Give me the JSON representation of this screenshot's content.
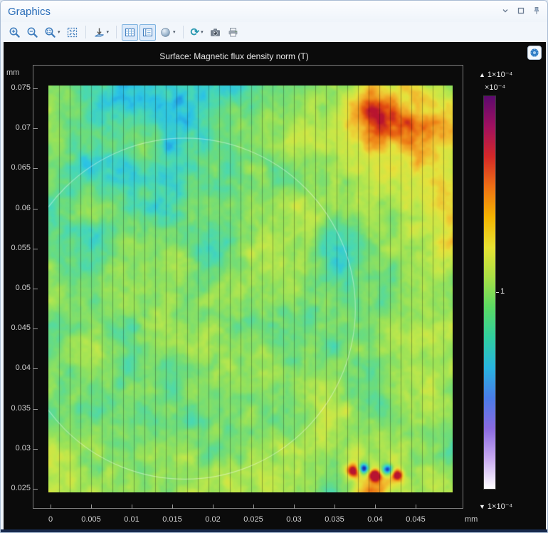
{
  "window": {
    "title": "Graphics"
  },
  "window_controls": [
    {
      "name": "collapse-button",
      "icon": "chevron-down-icon"
    },
    {
      "name": "float-button",
      "icon": "float-icon"
    },
    {
      "name": "pin-button",
      "icon": "pin-icon"
    }
  ],
  "toolbar": {
    "icons": [
      "zoom-in-icon",
      "zoom-out-icon",
      "zoom-box-icon",
      "zoom-extents-icon",
      "view-axis-icon",
      "show-grid-icon",
      "show-legends-icon",
      "scene-light-icon",
      "update-icon",
      "image-snapshot-icon",
      "print-icon"
    ]
  },
  "chart_data": {
    "type": "heatmap",
    "title": "Surface: Magnetic flux density norm (T)",
    "x_unit": "mm",
    "y_unit": "mm",
    "x_ticks": [
      "0",
      "0.005",
      "0.01",
      "0.015",
      "0.02",
      "0.025",
      "0.03",
      "0.035",
      "0.04",
      "0.045"
    ],
    "y_ticks": [
      "0.075",
      "0.07",
      "0.065",
      "0.06",
      "0.055",
      "0.05",
      "0.045",
      "0.04",
      "0.035",
      "0.03",
      "0.025"
    ],
    "x_range": [
      -0.00026,
      0.0496
    ],
    "y_range": [
      0.02456,
      0.07536
    ],
    "grid": "on",
    "grid_lines": {
      "orientation": "vertical",
      "spacing_px": 15,
      "color": "rgba(0,0,0,0.30)"
    },
    "geometry_circle": {
      "cx": 0.0166,
      "cy": 0.0475,
      "r": 0.021,
      "stroke": "rgba(255,255,255,0.40)"
    },
    "colorbar": {
      "up_arrow": "▲",
      "down_arrow": "▼",
      "top_label": "1×10⁻⁴",
      "multiplier_label": "×10⁻⁴",
      "mid_tick_label": "1",
      "bottom_label": "1×10⁻⁴",
      "colors_top_to_bottom": [
        "#5c0a6e",
        "#a01060",
        "#d42828",
        "#ee7014",
        "#f4b400",
        "#e8e232",
        "#a8e046",
        "#5ada64",
        "#30cfa0",
        "#28b4e0",
        "#4a7ce8",
        "#8a6ae0",
        "#c8aaf0",
        "#ffffff"
      ]
    },
    "surface_palette": [
      [
        0.0,
        "#1830b0"
      ],
      [
        0.1,
        "#2080e0"
      ],
      [
        0.2,
        "#2cc4e4"
      ],
      [
        0.3,
        "#48d8b4"
      ],
      [
        0.4,
        "#6cdc7c"
      ],
      [
        0.5,
        "#96e25a"
      ],
      [
        0.6,
        "#c2e84a"
      ],
      [
        0.7,
        "#e6e23c"
      ],
      [
        0.78,
        "#f2b82e"
      ],
      [
        0.86,
        "#ee8418"
      ],
      [
        0.93,
        "#e04810"
      ],
      [
        1.0,
        "#b81430"
      ]
    ],
    "noise": {
      "base": 0.49,
      "coarse_amp": 0.44,
      "fine_amp": 0.2,
      "coarse_freq": 10,
      "fine_freq": 34,
      "vertical_gradient": 0.04,
      "seed": 7
    },
    "features": [
      [
        0.8,
        0.055,
        0.05,
        0.32
      ],
      [
        0.86,
        0.13,
        0.1,
        0.16
      ],
      [
        0.97,
        0.07,
        0.07,
        0.16
      ],
      [
        0.93,
        0.13,
        0.04,
        0.12
      ],
      [
        0.99,
        0.32,
        0.07,
        0.1
      ],
      [
        0.76,
        0.2,
        0.12,
        0.07
      ],
      [
        1.0,
        0.5,
        0.05,
        0.08
      ],
      [
        0.62,
        0.16,
        0.04,
        0.1
      ],
      [
        0.16,
        0.07,
        0.13,
        -0.12
      ],
      [
        0.3,
        0.03,
        0.1,
        -0.08
      ],
      [
        0.34,
        0.13,
        0.17,
        -0.09
      ],
      [
        0.09,
        0.38,
        0.11,
        -0.08
      ],
      [
        0.52,
        0.28,
        0.2,
        -0.06
      ],
      [
        0.74,
        0.4,
        0.07,
        -0.09
      ],
      [
        0.245,
        0.155,
        0.03,
        0.15
      ],
      [
        0.37,
        0.295,
        0.04,
        0.1
      ],
      [
        0.3,
        0.42,
        0.05,
        0.06
      ],
      [
        0.752,
        0.945,
        0.012,
        0.55
      ],
      [
        0.778,
        0.94,
        0.009,
        -0.65
      ],
      [
        0.806,
        0.956,
        0.01,
        0.6
      ],
      [
        0.838,
        0.942,
        0.009,
        -0.6
      ],
      [
        0.862,
        0.955,
        0.01,
        0.5
      ],
      [
        0.8,
        0.99,
        0.03,
        0.25
      ]
    ]
  }
}
